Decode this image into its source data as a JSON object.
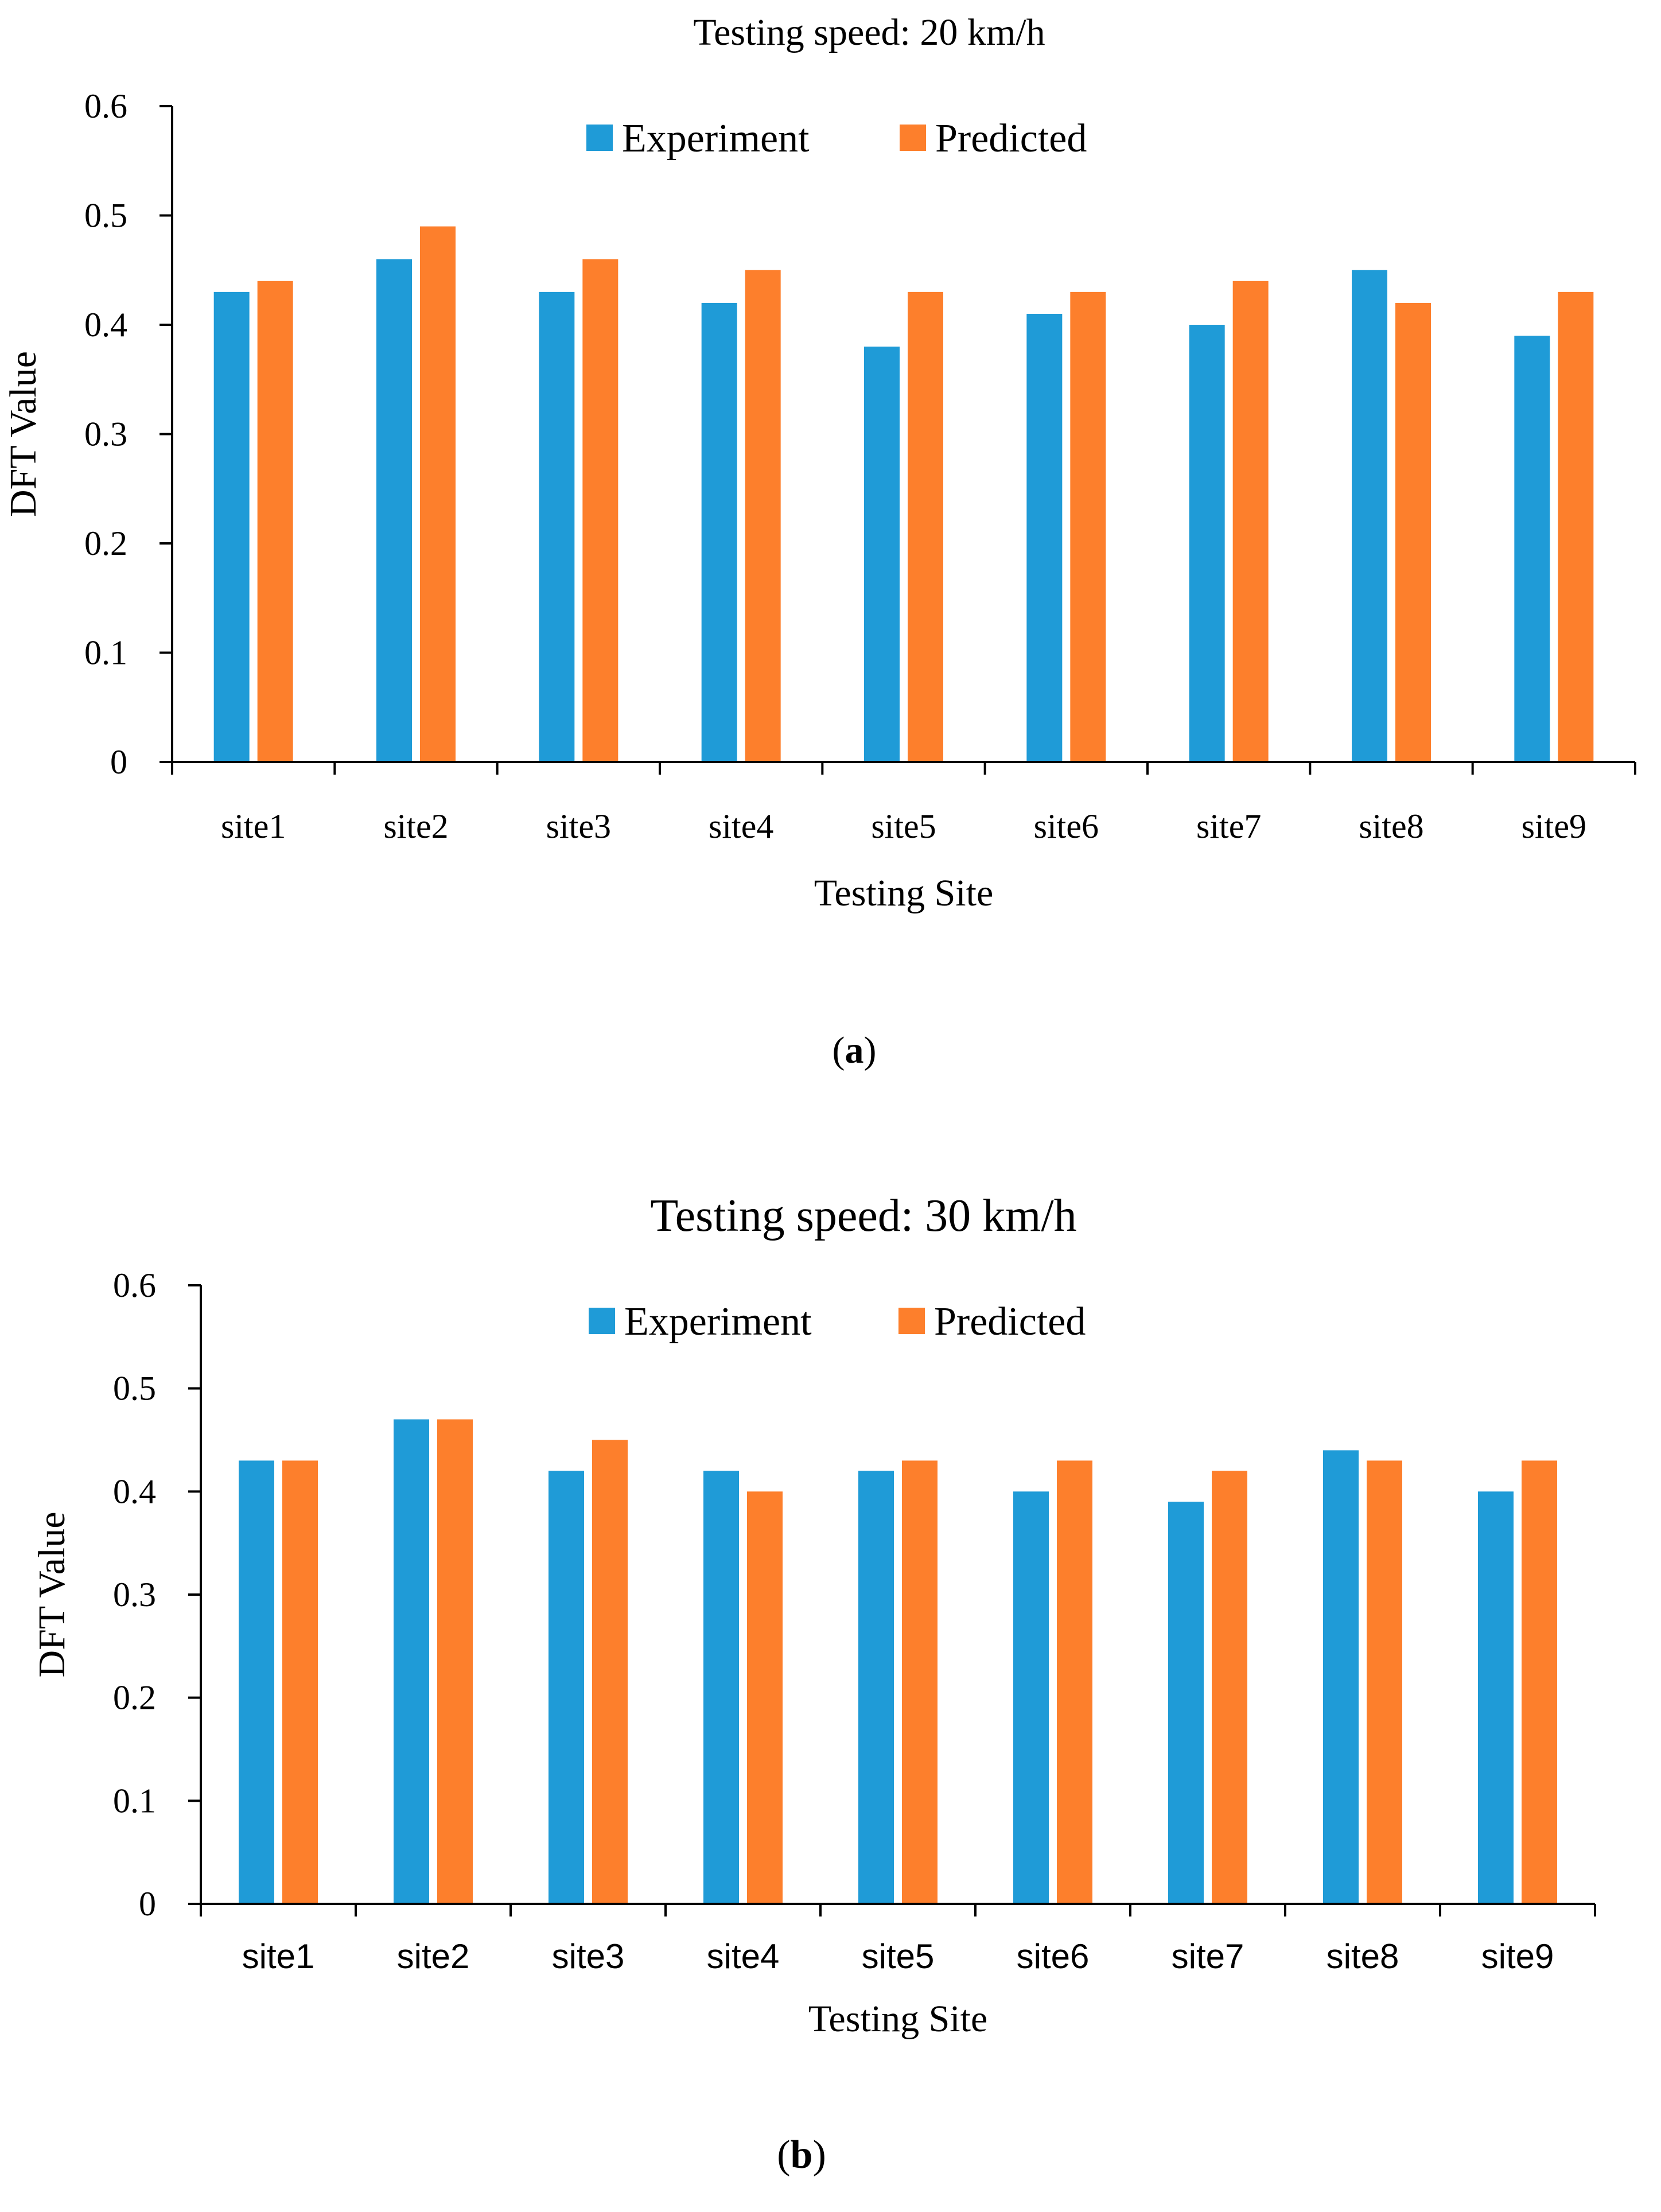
{
  "colors": {
    "experiment": "#1f9bd7",
    "predicted": "#fd7f2c",
    "axis": "#000000"
  },
  "legend_labels": [
    "Experiment",
    "Predicted"
  ],
  "chart_data": [
    {
      "panel": "a",
      "caption": "a",
      "type": "bar",
      "title": "Testing speed: 20 km/h",
      "xlabel": "Testing Site",
      "ylabel": "DFT Value",
      "categories": [
        "site1",
        "site2",
        "site3",
        "site4",
        "site5",
        "site6",
        "site7",
        "site8",
        "site9"
      ],
      "series": [
        {
          "name": "Experiment",
          "values": [
            0.43,
            0.46,
            0.43,
            0.42,
            0.38,
            0.41,
            0.4,
            0.45,
            0.39
          ]
        },
        {
          "name": "Predicted",
          "values": [
            0.44,
            0.49,
            0.46,
            0.45,
            0.43,
            0.43,
            0.44,
            0.42,
            0.43
          ]
        }
      ],
      "ylim": [
        0,
        0.6
      ],
      "yticks": [
        "0",
        "0.1",
        "0.2",
        "0.3",
        "0.4",
        "0.5",
        "0.6"
      ],
      "grid": false,
      "legend_position": "top-center"
    },
    {
      "panel": "b",
      "caption": "b",
      "type": "bar",
      "title": "Testing speed: 30 km/h",
      "xlabel": "Testing Site",
      "ylabel": "DFT Value",
      "categories": [
        "site1",
        "site2",
        "site3",
        "site4",
        "site5",
        "site6",
        "site7",
        "site8",
        "site9"
      ],
      "series": [
        {
          "name": "Experiment",
          "values": [
            0.43,
            0.47,
            0.42,
            0.42,
            0.42,
            0.4,
            0.39,
            0.44,
            0.4
          ]
        },
        {
          "name": "Predicted",
          "values": [
            0.43,
            0.47,
            0.45,
            0.4,
            0.43,
            0.43,
            0.42,
            0.43,
            0.43
          ]
        }
      ],
      "ylim": [
        0,
        0.6
      ],
      "yticks": [
        "0",
        "0.1",
        "0.2",
        "0.3",
        "0.4",
        "0.5",
        "0.6"
      ],
      "grid": false,
      "legend_position": "top-center"
    }
  ]
}
